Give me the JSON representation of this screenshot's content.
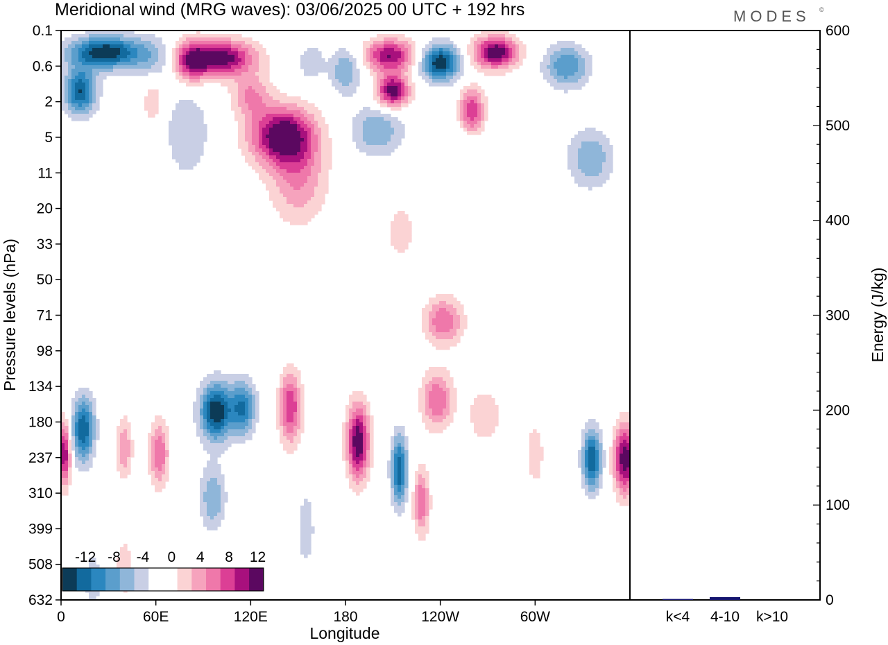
{
  "header": {
    "title": "Meridional wind (MRG waves):  03/06/2025  00 UTC  + 192 hrs",
    "logo": "MODES",
    "logo_mark": "©"
  },
  "chart_data": [
    {
      "type": "heatmap",
      "title": "Meridional wind (MRG waves):  03/06/2025  00 UTC  + 192 hrs",
      "xlabel": "Longitude",
      "ylabel": "Pressure levels (hPa)",
      "x_ticks": [
        "0",
        "60E",
        "120E",
        "180",
        "120W",
        "60W"
      ],
      "x_tick_degrees": [
        0,
        60,
        120,
        180,
        240,
        300
      ],
      "xlim": [
        0,
        360
      ],
      "y_ticks": [
        "0.1",
        "0.6",
        "2",
        "5",
        "11",
        "20",
        "33",
        "50",
        "71",
        "98",
        "134",
        "180",
        "237",
        "310",
        "399",
        "508",
        "632"
      ],
      "colorbar": {
        "levels": [
          -14,
          -12,
          -10,
          -8,
          -6,
          -4,
          -2,
          0,
          2,
          4,
          6,
          8,
          10,
          12,
          14
        ],
        "labels": [
          "-12",
          "-8",
          "-4",
          "0",
          "4",
          "8",
          "12"
        ],
        "colors": [
          "#0c3b57",
          "#126a9e",
          "#2b87bf",
          "#5b9ecc",
          "#8fb6d9",
          "#c9cfe5",
          "#ffffff",
          "#ffffff",
          "#fbd3d4",
          "#f6a3bd",
          "#ef78aa",
          "#dc3f95",
          "#a8107d",
          "#5b0860"
        ]
      },
      "blobs": [
        {
          "lon": 28,
          "lev": 0.3,
          "w": 22,
          "h": 0.9,
          "v": -14
        },
        {
          "lon": 12,
          "lev": 1.4,
          "w": 10,
          "h": 1.3,
          "v": -12
        },
        {
          "lon": 58,
          "lev": 0.4,
          "w": 14,
          "h": 1.3,
          "v": -4
        },
        {
          "lon": 100,
          "lev": 0.4,
          "w": 22,
          "h": 1.0,
          "v": 14
        },
        {
          "lon": 82,
          "lev": 0.5,
          "w": 10,
          "h": 1.2,
          "v": 8
        },
        {
          "lon": 120,
          "lev": 1.6,
          "w": 12,
          "h": 1.2,
          "v": 6
        },
        {
          "lon": 158,
          "lev": 0.5,
          "w": 8,
          "h": 1.0,
          "v": -4
        },
        {
          "lon": 180,
          "lev": 0.7,
          "w": 10,
          "h": 1.3,
          "v": -6
        },
        {
          "lon": 208,
          "lev": 0.35,
          "w": 16,
          "h": 0.9,
          "v": 12
        },
        {
          "lon": 210,
          "lev": 1.4,
          "w": 10,
          "h": 0.9,
          "v": 14
        },
        {
          "lon": 240,
          "lev": 0.5,
          "w": 12,
          "h": 1.0,
          "v": -14
        },
        {
          "lon": 275,
          "lev": 0.3,
          "w": 14,
          "h": 0.9,
          "v": 14
        },
        {
          "lon": 320,
          "lev": 0.6,
          "w": 14,
          "h": 1.2,
          "v": -8
        },
        {
          "lon": 260,
          "lev": 2.6,
          "w": 8,
          "h": 1.3,
          "v": 10
        },
        {
          "lon": 140,
          "lev": 4.8,
          "w": 20,
          "h": 1.6,
          "v": 14
        },
        {
          "lon": 150,
          "lev": 12,
          "w": 18,
          "h": 2.5,
          "v": 6
        },
        {
          "lon": 80,
          "lev": 4.5,
          "w": 14,
          "h": 2.5,
          "v": -4
        },
        {
          "lon": 58,
          "lev": 2.0,
          "w": 6,
          "h": 1.3,
          "v": 4
        },
        {
          "lon": 200,
          "lev": 4.2,
          "w": 16,
          "h": 1.4,
          "v": -6
        },
        {
          "lon": 335,
          "lev": 8.0,
          "w": 14,
          "h": 1.6,
          "v": -6
        },
        {
          "lon": 250,
          "lev": 6.0,
          "w": 20,
          "h": 1.5,
          "v": -2
        },
        {
          "lon": 215,
          "lev": 28,
          "w": 8,
          "h": 1.4,
          "v": 4
        },
        {
          "lon": 95,
          "lev": 28,
          "w": 10,
          "h": 1.4,
          "v": -2
        },
        {
          "lon": 242,
          "lev": 75,
          "w": 12,
          "h": 1.3,
          "v": 8
        },
        {
          "lon": 185,
          "lev": 75,
          "w": 6,
          "h": 1.3,
          "v": 2
        },
        {
          "lon": 14,
          "lev": 190,
          "w": 7,
          "h": 1.8,
          "v": -12
        },
        {
          "lon": 40,
          "lev": 220,
          "w": 5,
          "h": 1.7,
          "v": 6
        },
        {
          "lon": 62,
          "lev": 230,
          "w": 6,
          "h": 1.8,
          "v": 8
        },
        {
          "lon": 98,
          "lev": 165,
          "w": 10,
          "h": 1.6,
          "v": -14
        },
        {
          "lon": 115,
          "lev": 160,
          "w": 8,
          "h": 1.5,
          "v": -10
        },
        {
          "lon": 96,
          "lev": 320,
          "w": 8,
          "h": 1.8,
          "v": -6
        },
        {
          "lon": 145,
          "lev": 160,
          "w": 7,
          "h": 2.0,
          "v": 10
        },
        {
          "lon": 155,
          "lev": 400,
          "w": 5,
          "h": 2.0,
          "v": -4
        },
        {
          "lon": 188,
          "lev": 210,
          "w": 7,
          "h": 2.1,
          "v": 14
        },
        {
          "lon": 214,
          "lev": 260,
          "w": 5,
          "h": 1.9,
          "v": -12
        },
        {
          "lon": 238,
          "lev": 150,
          "w": 10,
          "h": 1.6,
          "v": 8
        },
        {
          "lon": 228,
          "lev": 330,
          "w": 5,
          "h": 1.8,
          "v": 8
        },
        {
          "lon": 268,
          "lev": 170,
          "w": 10,
          "h": 1.5,
          "v": 4
        },
        {
          "lon": 300,
          "lev": 230,
          "w": 5,
          "h": 1.7,
          "v": 4
        },
        {
          "lon": 336,
          "lev": 240,
          "w": 6,
          "h": 1.7,
          "v": -12
        },
        {
          "lon": 357,
          "lev": 240,
          "w": 7,
          "h": 1.9,
          "v": 14
        },
        {
          "lon": 2,
          "lev": 230,
          "w": 4,
          "h": 1.8,
          "v": 12
        },
        {
          "lon": 28,
          "lev": 110,
          "w": 6,
          "h": 1.3,
          "v": -2
        },
        {
          "lon": 250,
          "lev": 430,
          "w": 6,
          "h": 2.0,
          "v": -2
        },
        {
          "lon": 40,
          "lev": 520,
          "w": 5,
          "h": 1.6,
          "v": 4
        },
        {
          "lon": 20,
          "lev": 560,
          "w": 5,
          "h": 1.5,
          "v": -4
        }
      ]
    },
    {
      "type": "bar",
      "ylabel": "Energy (J/kg)",
      "categories": [
        "k<4",
        "4-10",
        "k>10"
      ],
      "values": [
        1,
        3,
        0
      ],
      "ylim": [
        0,
        600
      ],
      "y_ticks": [
        0,
        100,
        200,
        300,
        400,
        500,
        600
      ],
      "bar_color": "#14146e"
    }
  ]
}
